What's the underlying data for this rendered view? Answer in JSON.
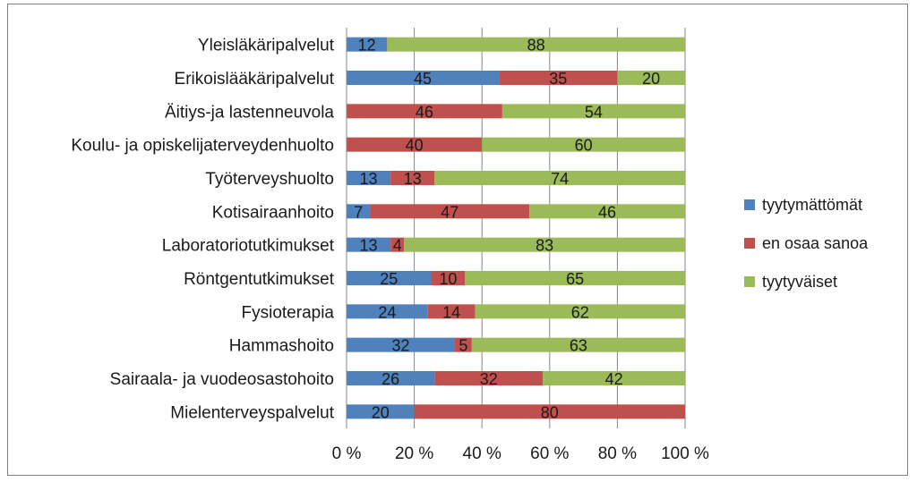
{
  "chart_data": {
    "type": "bar",
    "orientation": "horizontal",
    "stacked": "percent",
    "categories": [
      "Yleisläkäripalvelut",
      "Erikoislääkäripalvelut",
      "Äitiys-ja lastenneuvola",
      "Koulu- ja opiskelijaterveydenhuolto",
      "Työterveyshuolto",
      "Kotisairaanhoito",
      "Laboratoriotutkimukset",
      "Röntgentutkimukset",
      "Fysioterapia",
      "Hammashoito",
      "Sairaala- ja vuodeosastohoito",
      "Mielenterveyspalvelut"
    ],
    "series": [
      {
        "name": "tyytymättömät",
        "color": "#4f81bd",
        "values": [
          12,
          45,
          0,
          0,
          13,
          7,
          13,
          25,
          24,
          32,
          26,
          20
        ]
      },
      {
        "name": "en osaa sanoa",
        "color": "#c0504d",
        "values": [
          0,
          35,
          46,
          40,
          13,
          47,
          4,
          10,
          14,
          5,
          32,
          80
        ]
      },
      {
        "name": "tyytyväiset",
        "color": "#9bbb59",
        "values": [
          88,
          20,
          54,
          60,
          74,
          46,
          83,
          65,
          62,
          63,
          42,
          0
        ]
      }
    ],
    "xlim": [
      0,
      100
    ],
    "x_ticks": [
      "0 %",
      "20 %",
      "40 %",
      "60 %",
      "80 %",
      "100 %"
    ],
    "grid": true,
    "legend_position": "right"
  }
}
